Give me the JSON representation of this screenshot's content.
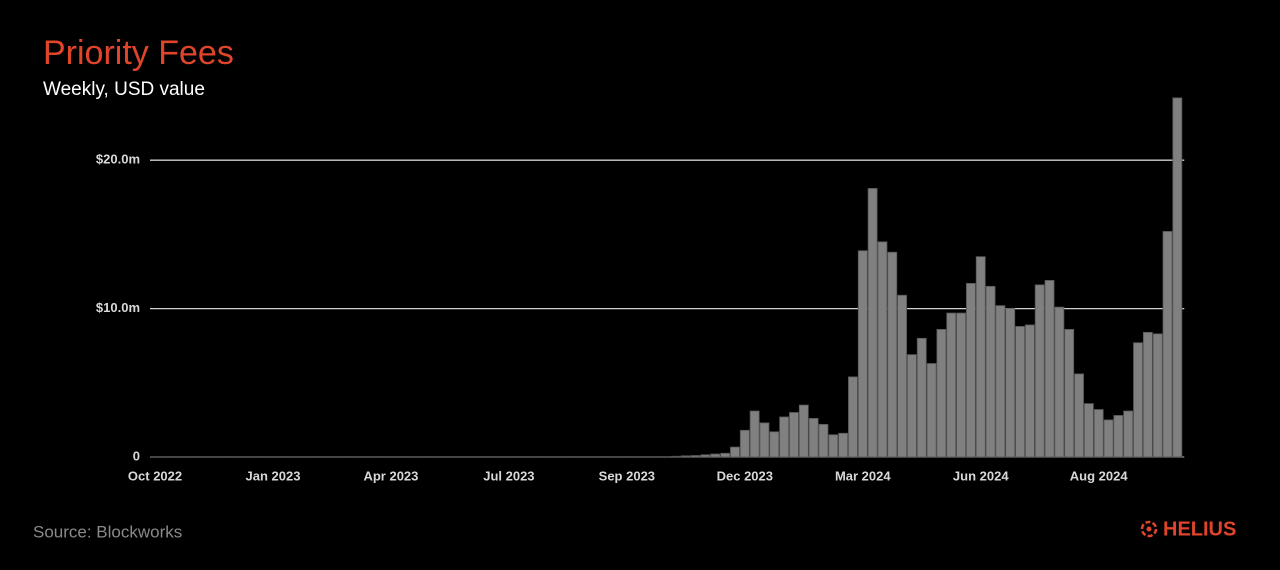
{
  "chart_data": {
    "type": "bar",
    "title": "Priority Fees",
    "subtitle": "Weekly, USD value",
    "categories": [
      "Oct 2022",
      null,
      null,
      null,
      null,
      null,
      null,
      null,
      null,
      null,
      null,
      null,
      "Jan 2023",
      null,
      null,
      null,
      null,
      null,
      null,
      null,
      null,
      null,
      null,
      null,
      "Apr 2023",
      null,
      null,
      null,
      null,
      null,
      null,
      null,
      null,
      null,
      null,
      null,
      "Jul 2023",
      null,
      null,
      null,
      null,
      null,
      null,
      null,
      null,
      null,
      null,
      null,
      "Sep 2023",
      null,
      null,
      null,
      null,
      null,
      null,
      null,
      null,
      null,
      null,
      null,
      "Dec 2023",
      null,
      null,
      null,
      null,
      null,
      null,
      null,
      null,
      null,
      null,
      null,
      "Mar 2024",
      null,
      null,
      null,
      null,
      null,
      null,
      null,
      null,
      null,
      null,
      null,
      "Jun 2024",
      null,
      null,
      null,
      null,
      null,
      null,
      null,
      null,
      null,
      null,
      null,
      "Aug 2024",
      null,
      null,
      null,
      null,
      null,
      null,
      null,
      null
    ],
    "values": [
      20000,
      20000,
      20000,
      20000,
      20000,
      20000,
      20000,
      20000,
      20000,
      20000,
      20000,
      20000,
      20000,
      20000,
      20000,
      20000,
      20000,
      20000,
      20000,
      20000,
      20000,
      20000,
      20000,
      20000,
      20000,
      20000,
      20000,
      20000,
      20000,
      20000,
      20000,
      20000,
      20000,
      20000,
      20000,
      20000,
      20000,
      20000,
      20000,
      20000,
      20000,
      20000,
      20000,
      20000,
      20000,
      20000,
      20000,
      20000,
      20000,
      20000,
      20000,
      20000,
      20000,
      50000,
      80000,
      100000,
      150000,
      200000,
      250000,
      670000,
      1800000,
      3100000,
      2300000,
      1700000,
      2700000,
      3000000,
      3500000,
      2600000,
      2200000,
      1500000,
      1600000,
      5400000,
      13900000,
      18100000,
      14500000,
      13800000,
      10900000,
      6900000,
      8000000,
      6300000,
      8600000,
      9700000,
      9700000,
      11700000,
      13500000,
      11500000,
      10200000,
      10000000,
      8800000,
      8900000,
      11600000,
      11900000,
      10100000,
      8600000,
      5600000,
      3600000,
      3200000,
      2500000,
      2800000,
      3100000,
      7700000,
      8400000,
      8300000,
      15200000,
      24200000
    ],
    "color": "#808080",
    "ylim": [
      0,
      25000000
    ],
    "yticks": [
      {
        "value": 0,
        "label": "0"
      },
      {
        "value": 10000000,
        "label": "$10.0m"
      },
      {
        "value": 20000000,
        "label": "$20.0m"
      }
    ],
    "grid": true
  },
  "footer": {
    "source": "Source: Blockworks",
    "logo": "HELIUS"
  }
}
